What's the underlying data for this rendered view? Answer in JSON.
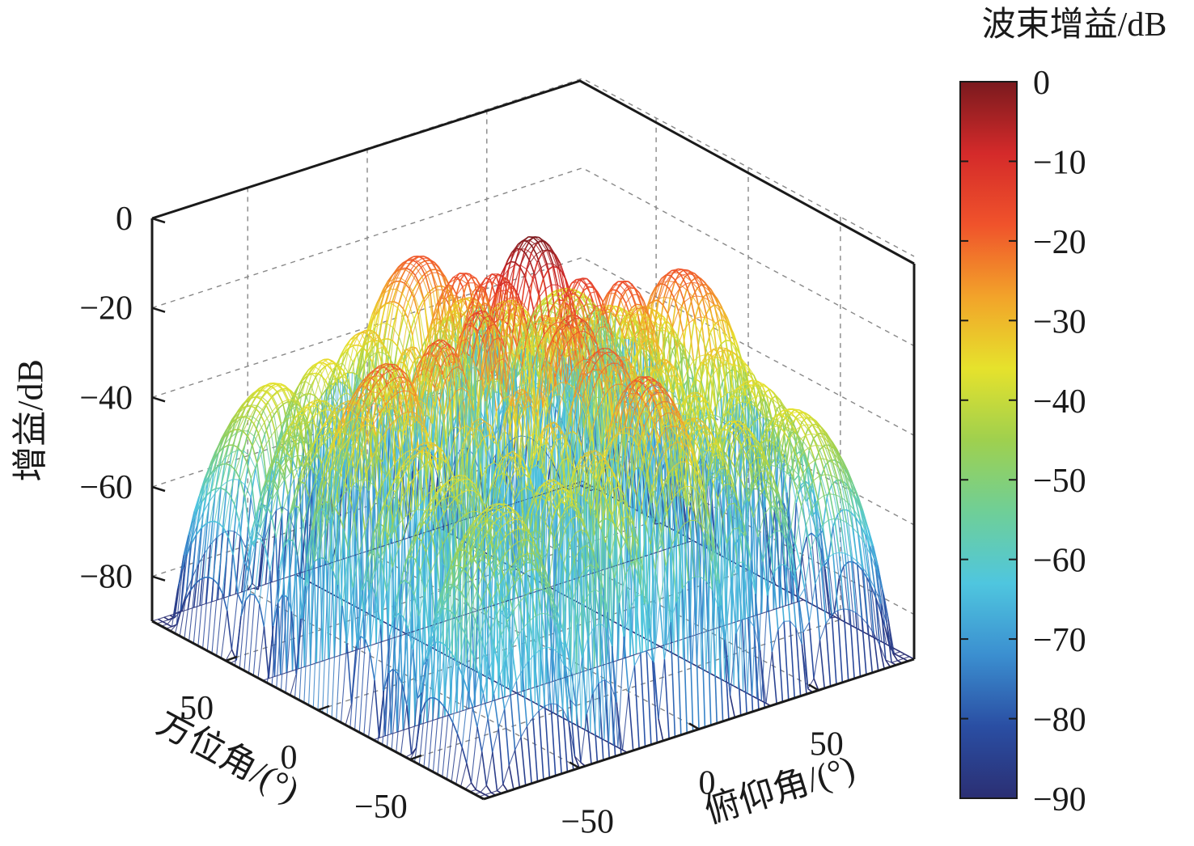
{
  "chart_data": {
    "type": "surface",
    "title": "",
    "xlabel": "方位角/(°)",
    "ylabel": "俯仰角/(°)",
    "zlabel": "增益/dB",
    "x_ticks": [
      "50",
      "0",
      "−50"
    ],
    "y_ticks": [
      "−50",
      "0",
      "50"
    ],
    "z_ticks": [
      "0",
      "−20",
      "−40",
      "−60",
      "−80"
    ],
    "x_range": [
      -90,
      90
    ],
    "y_range": [
      -90,
      90
    ],
    "z_range": [
      -90,
      0
    ],
    "grid": true,
    "peak": {
      "azimuth": 0,
      "elevation": 0,
      "gain": 0
    },
    "colorbar": {
      "title": "波束增益/dB",
      "ticks": [
        "0",
        "−10",
        "−20",
        "−30",
        "−40",
        "−50",
        "−60",
        "−70",
        "−80",
        "−90"
      ],
      "range": [
        -90,
        0
      ],
      "colormap": [
        "#2b2f73",
        "#2a4ea3",
        "#3b8fd0",
        "#4fc6df",
        "#6fcf97",
        "#9fd04e",
        "#e6e22c",
        "#f2a32a",
        "#f0532b",
        "#d42a2a",
        "#7a1a1e"
      ]
    }
  }
}
